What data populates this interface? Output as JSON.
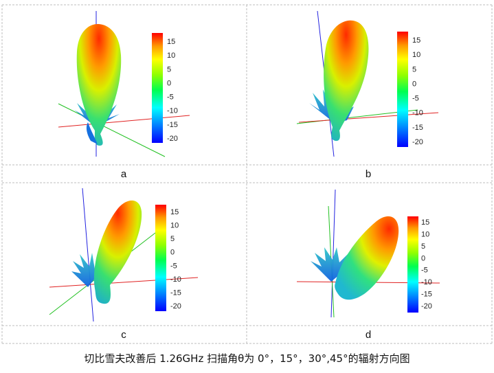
{
  "figure": {
    "caption": "切比雪夫改善后 1.26GHz 扫描角θ为 0°，15°，30°,45°的辐射方向图",
    "panels": [
      {
        "label": "a",
        "scan_angle_deg": 0
      },
      {
        "label": "b",
        "scan_angle_deg": 15
      },
      {
        "label": "c",
        "scan_angle_deg": 30
      },
      {
        "label": "d",
        "scan_angle_deg": 45
      }
    ],
    "colorbar": {
      "ticks": [
        "15",
        "10",
        "5",
        "0",
        "-5",
        "-10",
        "-15",
        "-20"
      ],
      "min": -20,
      "max": 17,
      "colors": [
        "#0000ff",
        "#00a0ff",
        "#00ffff",
        "#00ff40",
        "#80ff00",
        "#ffff00",
        "#ff9900",
        "#ff0000"
      ]
    },
    "axis_colors": {
      "x": "#e02020",
      "y": "#20c020",
      "z": "#2020e0"
    }
  }
}
